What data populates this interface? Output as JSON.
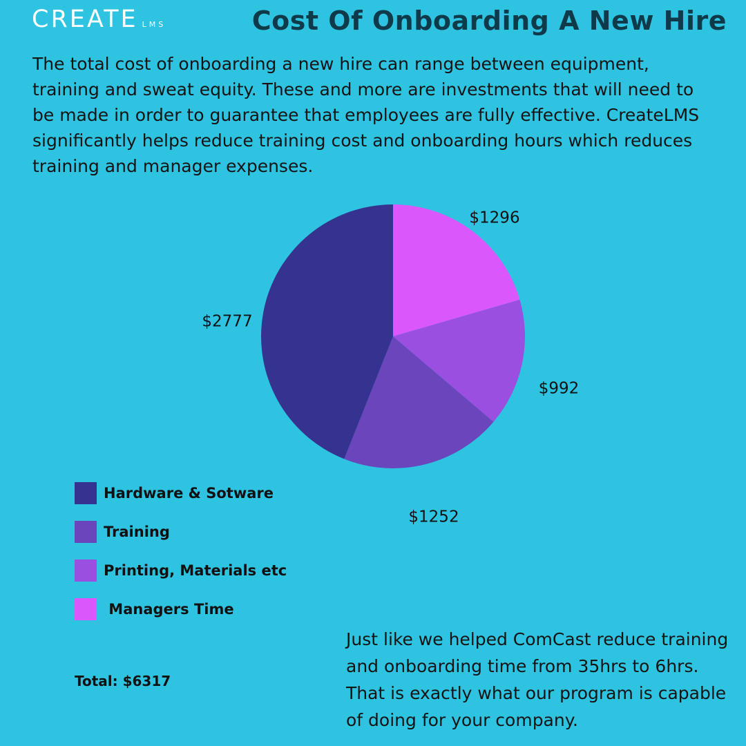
{
  "brand": {
    "logo_main": "CREATE",
    "logo_sub": "LMS"
  },
  "header": {
    "title": "Cost Of Onboarding A New Hire"
  },
  "intro": {
    "text": "The total cost of onboarding a new hire can range between equipment, training and sweat equity. These and more are investments that will need to be made in order to guarantee that employees are fully effective. CreateLMS significantly helps reduce training cost and onboarding hours which reduces training and manager expenses."
  },
  "colors": {
    "background": "#2fc3e2",
    "title": "#0f3a4a"
  },
  "chart_data": {
    "type": "pie",
    "title": "",
    "categories": [
      "Hardware & Sotware",
      "Training",
      "Printing, Materials etc",
      " Managers Time"
    ],
    "values": [
      2777,
      1252,
      992,
      1296
    ],
    "value_labels": [
      "$2777",
      "$1252",
      "$992",
      "$1296"
    ],
    "colors": [
      "#35338f",
      "#6a45bb",
      "#9b4fe0",
      "#d957fb"
    ],
    "legend_position": "bottom-left",
    "total_label": "Total: $6317"
  },
  "footer": {
    "text": "Just like we helped ComCast reduce training and onboarding time from 35hrs to 6hrs. That is exactly what our program is capable of doing for your company."
  }
}
